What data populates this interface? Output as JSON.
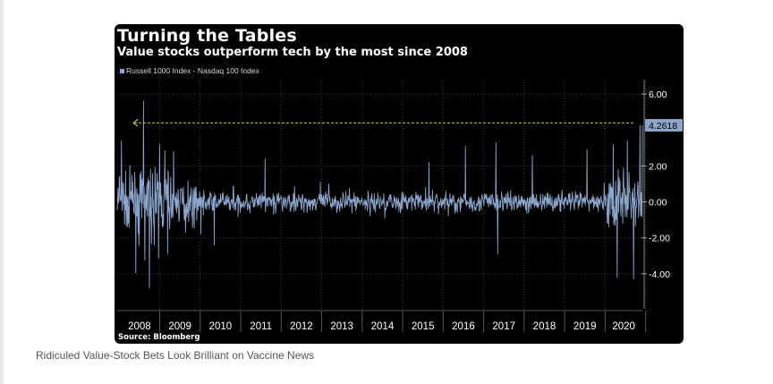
{
  "caption": "Ridiculed Value-Stock Bets Look Brilliant on Vaccine News",
  "chart_data": {
    "type": "line",
    "title": "Turning the Tables",
    "subtitle": "Value stocks outperform tech by the most since 2008",
    "source": "Source: Bloomberg",
    "series": [
      {
        "name": "Russell 1000 Index - Nasdaq 100 Index",
        "color": "#8ba5cc"
      }
    ],
    "x_start": 2007.95,
    "x_end": 2020.92,
    "x_ticks": [
      "2008",
      "2009",
      "2010",
      "2011",
      "2012",
      "2013",
      "2014",
      "2015",
      "2016",
      "2017",
      "2018",
      "2019",
      "2020"
    ],
    "y_ticks": [
      6,
      2,
      0,
      -2,
      -4
    ],
    "y_tick_labels": [
      "6.00",
      "2.00",
      "0.00",
      "-2.00",
      "-4.00"
    ],
    "ylim": [
      -5.9,
      6.8
    ],
    "last_value": 4.2618,
    "last_value_label": "4.2618",
    "reference_line": {
      "y": 4.4,
      "from": 2020.7,
      "to": 2008.35,
      "color": "#d2d52a"
    },
    "spikes": [
      {
        "x": 2008.05,
        "y": 3.4
      },
      {
        "x": 2008.6,
        "y": 5.6
      },
      {
        "x": 2008.75,
        "y": -4.8
      },
      {
        "x": 2009.0,
        "y": 3.2
      },
      {
        "x": 2009.2,
        "y": -2.9
      },
      {
        "x": 2010.35,
        "y": -2.4
      },
      {
        "x": 2011.6,
        "y": 2.4
      },
      {
        "x": 2015.65,
        "y": 2.2
      },
      {
        "x": 2016.55,
        "y": 3.1
      },
      {
        "x": 2017.3,
        "y": 3.3
      },
      {
        "x": 2017.35,
        "y": -2.9
      },
      {
        "x": 2018.2,
        "y": 2.6
      },
      {
        "x": 2019.55,
        "y": 2.9
      },
      {
        "x": 2020.2,
        "y": 3.2
      },
      {
        "x": 2020.3,
        "y": -4.2
      },
      {
        "x": 2020.55,
        "y": 3.4
      },
      {
        "x": 2020.7,
        "y": -4.3
      },
      {
        "x": 2020.86,
        "y": 4.26
      }
    ],
    "grid": true,
    "legend_position": "top-left",
    "background": "#000000"
  }
}
